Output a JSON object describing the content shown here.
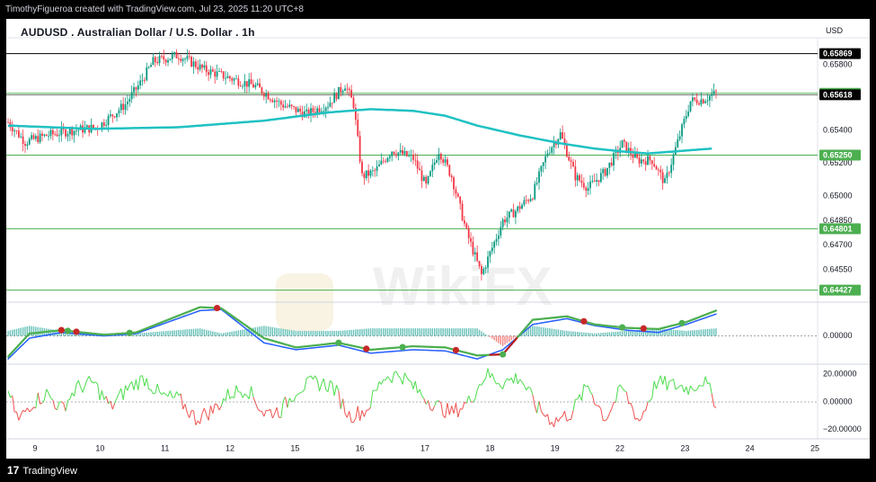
{
  "header": {
    "credit": "TimothyFigueroa created with TradingView.com, Jul 23, 2025 11:20 UTC+8"
  },
  "chart_header": {
    "title": "AUDUSD . Australian Dollar / U.S. Dollar . 1h",
    "currency": "USD"
  },
  "watermark": {
    "text": "WikiFX"
  },
  "footer": {
    "logo_mark": "17",
    "logo_text": "TradingView"
  },
  "colors": {
    "up": "#089981",
    "down": "#f23645",
    "ma": "#1fc1c3",
    "macd": "#2962ff",
    "signal_up": "#4caf50",
    "signal_down": "#b71c1c",
    "osc_up": "#4cdc4c",
    "osc_down": "#ef5350",
    "hline_green": "#4caf50",
    "hline_black": "#000000",
    "label_green": "#4caf50",
    "label_black": "#000000"
  },
  "chart_data": [
    {
      "type": "candlestick",
      "pane": "price",
      "ylim": [
        0.6437,
        0.6596
      ],
      "x_ticks": [
        "9",
        "10",
        "11",
        "12",
        "15",
        "16",
        "17",
        "18",
        "19",
        "22",
        "23",
        "24",
        "25"
      ],
      "y_ticks": [
        0.658,
        0.654,
        0.652,
        0.65,
        0.6485,
        0.647,
        0.6455
      ],
      "y_tick_labels": [
        "0.65800",
        "0.65400",
        "0.65200",
        "0.65000",
        "0.64850",
        "0.64700",
        "0.64550"
      ],
      "hlines": [
        {
          "value": 0.65869,
          "label": "0.65869",
          "style": "black"
        },
        {
          "value": 0.65627,
          "label": "0.65627",
          "style": "green"
        },
        {
          "value": 0.65618,
          "label": "0.65618",
          "style": "black-thin"
        },
        {
          "value": 0.6525,
          "label": "0.65250",
          "style": "green"
        },
        {
          "value": 0.64801,
          "label": "0.64801",
          "style": "green"
        },
        {
          "value": 0.64427,
          "label": "0.64427",
          "style": "green"
        }
      ],
      "ma_key_points": [
        [
          0,
          0.6543
        ],
        [
          40,
          0.6541
        ],
        [
          80,
          0.6542
        ],
        [
          120,
          0.6546
        ],
        [
          150,
          0.6551
        ],
        [
          170,
          0.6553
        ],
        [
          190,
          0.6552
        ],
        [
          205,
          0.6549
        ],
        [
          220,
          0.6543
        ],
        [
          240,
          0.6537
        ],
        [
          260,
          0.6532
        ],
        [
          275,
          0.6529
        ],
        [
          290,
          0.6527
        ],
        [
          300,
          0.6526
        ],
        [
          320,
          0.6528
        ],
        [
          330,
          0.6529
        ]
      ],
      "closes_key_points": [
        [
          0,
          0.6545
        ],
        [
          8,
          0.6533
        ],
        [
          18,
          0.6537
        ],
        [
          30,
          0.654
        ],
        [
          42,
          0.6542
        ],
        [
          55,
          0.6556
        ],
        [
          62,
          0.6569
        ],
        [
          68,
          0.6582
        ],
        [
          80,
          0.6586
        ],
        [
          92,
          0.6577
        ],
        [
          104,
          0.6572
        ],
        [
          116,
          0.6567
        ],
        [
          128,
          0.6556
        ],
        [
          140,
          0.655
        ],
        [
          150,
          0.6556
        ],
        [
          158,
          0.6568
        ],
        [
          162,
          0.6556
        ],
        [
          166,
          0.6512
        ],
        [
          172,
          0.6515
        ],
        [
          180,
          0.6528
        ],
        [
          190,
          0.6523
        ],
        [
          196,
          0.6506
        ],
        [
          202,
          0.6528
        ],
        [
          208,
          0.6512
        ],
        [
          215,
          0.6478
        ],
        [
          222,
          0.6452
        ],
        [
          232,
          0.6485
        ],
        [
          238,
          0.6491
        ],
        [
          246,
          0.6501
        ],
        [
          253,
          0.6527
        ],
        [
          259,
          0.6538
        ],
        [
          266,
          0.6512
        ],
        [
          272,
          0.6505
        ],
        [
          280,
          0.6515
        ],
        [
          288,
          0.6532
        ],
        [
          295,
          0.6522
        ],
        [
          302,
          0.6522
        ],
        [
          308,
          0.6508
        ],
        [
          314,
          0.6533
        ],
        [
          320,
          0.6558
        ],
        [
          326,
          0.6559
        ],
        [
          332,
          0.6563
        ]
      ]
    },
    {
      "type": "line",
      "pane": "macd",
      "ylim": [
        -0.0023,
        0.0027
      ],
      "y_ticks": [
        0
      ],
      "y_tick_labels": [
        "0.00000"
      ],
      "series": [
        {
          "key": "macd",
          "points": [
            [
              0,
              -0.002
            ],
            [
              10,
              -0.0002
            ],
            [
              25,
              0.0003
            ],
            [
              45,
              0.0
            ],
            [
              60,
              0.0002
            ],
            [
              75,
              0.0012
            ],
            [
              90,
              0.0022
            ],
            [
              100,
              0.0023
            ],
            [
              120,
              -0.0006
            ],
            [
              135,
              -0.0012
            ],
            [
              155,
              -0.0008
            ],
            [
              170,
              -0.0015
            ],
            [
              190,
              -0.0012
            ],
            [
              205,
              -0.0013
            ],
            [
              220,
              -0.002
            ],
            [
              232,
              -0.0012
            ],
            [
              246,
              0.001
            ],
            [
              262,
              0.0015
            ],
            [
              275,
              0.0009
            ],
            [
              290,
              0.0005
            ],
            [
              305,
              0.0003
            ],
            [
              318,
              0.001
            ],
            [
              332,
              0.0019
            ]
          ]
        },
        {
          "key": "signal",
          "points": [
            [
              0,
              -0.0018
            ],
            [
              10,
              0.0002
            ],
            [
              25,
              0.0005
            ],
            [
              45,
              0.0001
            ],
            [
              60,
              0.0003
            ],
            [
              75,
              0.0014
            ],
            [
              90,
              0.0025
            ],
            [
              100,
              0.0024
            ],
            [
              120,
              -0.0002
            ],
            [
              135,
              -0.001
            ],
            [
              155,
              -0.0006
            ],
            [
              170,
              -0.0012
            ],
            [
              190,
              -0.0009
            ],
            [
              205,
              -0.001
            ],
            [
              220,
              -0.0017
            ],
            [
              232,
              -0.0016
            ],
            [
              246,
              0.0014
            ],
            [
              262,
              0.0017
            ],
            [
              275,
              0.001
            ],
            [
              290,
              0.0007
            ],
            [
              305,
              0.0006
            ],
            [
              318,
              0.0012
            ],
            [
              332,
              0.0022
            ]
          ]
        }
      ],
      "crossover_dots": [
        {
          "x": 25,
          "color": "red"
        },
        {
          "x": 28,
          "color": "green"
        },
        {
          "x": 32,
          "color": "red"
        },
        {
          "x": 57,
          "color": "green"
        },
        {
          "x": 98,
          "color": "red"
        },
        {
          "x": 155,
          "color": "green"
        },
        {
          "x": 168,
          "color": "red"
        },
        {
          "x": 185,
          "color": "green"
        },
        {
          "x": 210,
          "color": "red"
        },
        {
          "x": 232,
          "color": "green"
        },
        {
          "x": 270,
          "color": "red"
        },
        {
          "x": 288,
          "color": "green"
        },
        {
          "x": 298,
          "color": "red"
        },
        {
          "x": 316,
          "color": "green"
        }
      ]
    },
    {
      "type": "line",
      "pane": "oscillator",
      "ylim": [
        -26,
        26
      ],
      "y_ticks": [
        20,
        0,
        -20
      ],
      "y_tick_labels": [
        "20.00000",
        "0.00000",
        "−20.00000"
      ],
      "key_points": [
        [
          0,
          8
        ],
        [
          5,
          -14
        ],
        [
          10,
          -2
        ],
        [
          18,
          6
        ],
        [
          25,
          -5
        ],
        [
          32,
          10
        ],
        [
          40,
          14
        ],
        [
          48,
          -4
        ],
        [
          56,
          10
        ],
        [
          64,
          17
        ],
        [
          72,
          4
        ],
        [
          80,
          2
        ],
        [
          88,
          -12
        ],
        [
          96,
          -6
        ],
        [
          104,
          6
        ],
        [
          112,
          10
        ],
        [
          120,
          -8
        ],
        [
          128,
          -6
        ],
        [
          136,
          10
        ],
        [
          144,
          14
        ],
        [
          152,
          12
        ],
        [
          160,
          -10
        ],
        [
          168,
          -6
        ],
        [
          176,
          18
        ],
        [
          184,
          20
        ],
        [
          192,
          8
        ],
        [
          200,
          -2
        ],
        [
          208,
          -8
        ],
        [
          216,
          0
        ],
        [
          224,
          20
        ],
        [
          232,
          14
        ],
        [
          240,
          18
        ],
        [
          248,
          -4
        ],
        [
          256,
          -14
        ],
        [
          264,
          -8
        ],
        [
          272,
          12
        ],
        [
          280,
          -12
        ],
        [
          288,
          10
        ],
        [
          296,
          -14
        ],
        [
          304,
          14
        ],
        [
          312,
          12
        ],
        [
          320,
          10
        ],
        [
          326,
          16
        ],
        [
          332,
          0
        ]
      ]
    }
  ]
}
